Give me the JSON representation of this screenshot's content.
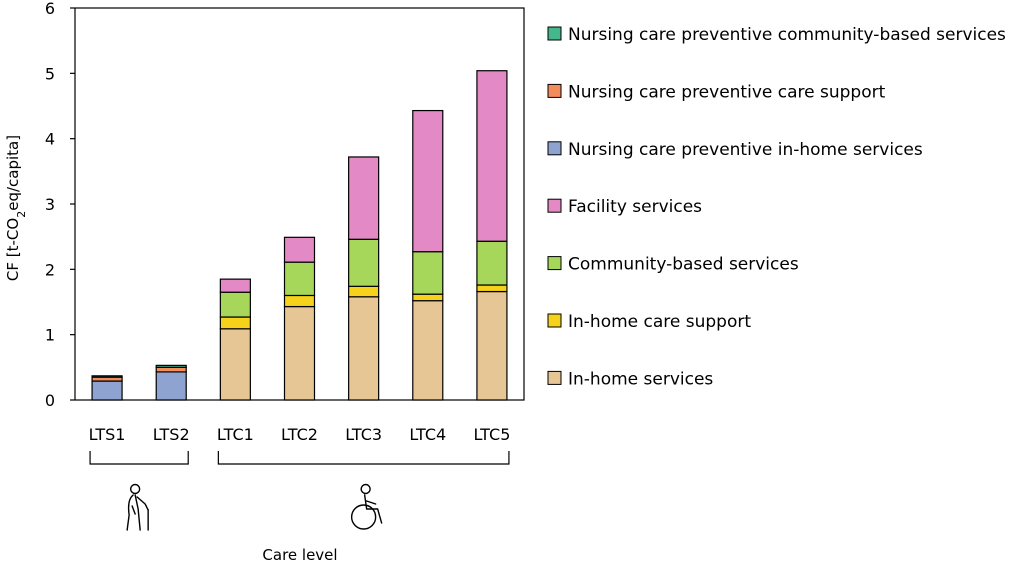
{
  "chart_data": {
    "type": "bar",
    "stacked": true,
    "categories": [
      "LTS1",
      "LTS2",
      "LTC1",
      "LTC2",
      "LTC3",
      "LTC4",
      "LTC5"
    ],
    "series": [
      {
        "name": "In-home services",
        "color": "#e6c695",
        "values": [
          0,
          0,
          1.09,
          1.43,
          1.58,
          1.52,
          1.66
        ]
      },
      {
        "name": "In-home care support",
        "color": "#f7d21a",
        "values": [
          0,
          0,
          0.18,
          0.17,
          0.16,
          0.1,
          0.1
        ]
      },
      {
        "name": "Community-based services",
        "color": "#a6d75b",
        "values": [
          0,
          0,
          0.38,
          0.51,
          0.72,
          0.65,
          0.67
        ]
      },
      {
        "name": "Facility services",
        "color": "#e38ac6",
        "values": [
          0,
          0,
          0.2,
          0.38,
          1.26,
          2.16,
          2.61
        ]
      },
      {
        "name": "Nursing care preventive in-home services",
        "color": "#8fa3d1",
        "values": [
          0.29,
          0.43,
          0,
          0,
          0,
          0,
          0
        ]
      },
      {
        "name": "Nursing care preventive care support",
        "color": "#f28c5a",
        "values": [
          0.06,
          0.07,
          0,
          0,
          0,
          0,
          0
        ]
      },
      {
        "name": "Nursing care preventive community-based services",
        "color": "#45b78c",
        "values": [
          0.02,
          0.03,
          0,
          0,
          0,
          0,
          0
        ]
      }
    ],
    "legend_order": [
      6,
      5,
      4,
      3,
      2,
      1,
      0
    ],
    "ylabel_prefix": "CF [t-CO",
    "ylabel_sub": "2",
    "ylabel_suffix": "eq/capita]",
    "xlabel": "Care level",
    "ylim": [
      0,
      6
    ],
    "yticks": [
      "0",
      "1",
      "2",
      "3",
      "4",
      "5",
      "6"
    ],
    "legend_position": "right",
    "groups": [
      {
        "members": [
          0,
          1
        ],
        "icon": "elderly-person-with-cane-icon"
      },
      {
        "members": [
          2,
          3,
          4,
          5,
          6
        ],
        "icon": "wheelchair-user-icon"
      }
    ]
  }
}
